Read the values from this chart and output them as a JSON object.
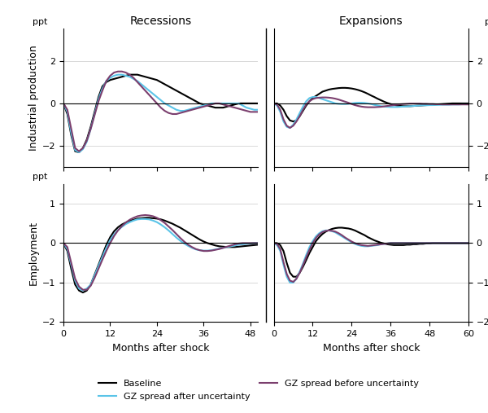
{
  "recession_months": [
    0,
    1,
    2,
    3,
    4,
    5,
    6,
    7,
    8,
    9,
    10,
    11,
    12,
    13,
    14,
    15,
    16,
    17,
    18,
    19,
    20,
    21,
    22,
    23,
    24,
    25,
    26,
    27,
    28,
    29,
    30,
    31,
    32,
    33,
    34,
    35,
    36,
    37,
    38,
    39,
    40,
    41,
    42,
    43,
    44,
    45,
    46,
    47,
    48,
    49,
    50
  ],
  "expansion_months": [
    0,
    1,
    2,
    3,
    4,
    5,
    6,
    7,
    8,
    9,
    10,
    11,
    12,
    13,
    14,
    15,
    16,
    17,
    18,
    19,
    20,
    21,
    22,
    23,
    24,
    25,
    26,
    27,
    28,
    29,
    30,
    31,
    32,
    33,
    34,
    35,
    36,
    37,
    38,
    39,
    40,
    41,
    42,
    43,
    44,
    45,
    46,
    47,
    48,
    49,
    50,
    51,
    52,
    53,
    54,
    55,
    56,
    57,
    58,
    59,
    60
  ],
  "rec_ip_baseline": [
    0,
    -0.5,
    -1.5,
    -2.25,
    -2.3,
    -2.1,
    -1.7,
    -1.1,
    -0.4,
    0.3,
    0.8,
    1.0,
    1.1,
    1.15,
    1.2,
    1.25,
    1.3,
    1.35,
    1.35,
    1.35,
    1.3,
    1.25,
    1.2,
    1.15,
    1.1,
    1.0,
    0.9,
    0.8,
    0.7,
    0.6,
    0.5,
    0.4,
    0.3,
    0.2,
    0.1,
    0.0,
    -0.05,
    -0.1,
    -0.15,
    -0.2,
    -0.2,
    -0.2,
    -0.15,
    -0.1,
    -0.05,
    0.0,
    0.0,
    0.0,
    0.0,
    0.0,
    0.0
  ],
  "rec_ip_gz_after": [
    0,
    -0.4,
    -1.4,
    -2.2,
    -2.3,
    -2.15,
    -1.8,
    -1.2,
    -0.5,
    0.2,
    0.7,
    1.05,
    1.2,
    1.3,
    1.35,
    1.35,
    1.3,
    1.25,
    1.15,
    1.05,
    0.9,
    0.75,
    0.6,
    0.45,
    0.3,
    0.15,
    0.0,
    -0.1,
    -0.2,
    -0.3,
    -0.35,
    -0.35,
    -0.3,
    -0.25,
    -0.2,
    -0.15,
    -0.1,
    -0.05,
    0.0,
    0.0,
    0.0,
    0.0,
    0.0,
    0.0,
    0.0,
    0.0,
    -0.1,
    -0.2,
    -0.25,
    -0.3,
    -0.3
  ],
  "rec_ip_gz_before": [
    0,
    -0.3,
    -1.2,
    -2.1,
    -2.25,
    -2.1,
    -1.75,
    -1.2,
    -0.55,
    0.1,
    0.6,
    1.05,
    1.3,
    1.45,
    1.5,
    1.5,
    1.45,
    1.35,
    1.2,
    1.0,
    0.8,
    0.6,
    0.4,
    0.2,
    0.0,
    -0.2,
    -0.35,
    -0.45,
    -0.5,
    -0.5,
    -0.45,
    -0.4,
    -0.35,
    -0.3,
    -0.25,
    -0.2,
    -0.15,
    -0.1,
    -0.05,
    0.0,
    0.0,
    -0.05,
    -0.1,
    -0.15,
    -0.2,
    -0.25,
    -0.3,
    -0.35,
    -0.4,
    -0.4,
    -0.4
  ],
  "exp_ip_baseline": [
    0,
    0.0,
    -0.1,
    -0.3,
    -0.6,
    -0.8,
    -0.85,
    -0.8,
    -0.6,
    -0.35,
    -0.1,
    0.1,
    0.25,
    0.35,
    0.45,
    0.55,
    0.6,
    0.65,
    0.68,
    0.7,
    0.72,
    0.73,
    0.73,
    0.72,
    0.7,
    0.67,
    0.63,
    0.58,
    0.52,
    0.45,
    0.37,
    0.3,
    0.22,
    0.15,
    0.08,
    0.02,
    -0.03,
    -0.07,
    -0.1,
    -0.12,
    -0.13,
    -0.13,
    -0.13,
    -0.12,
    -0.11,
    -0.1,
    -0.09,
    -0.08,
    -0.07,
    -0.06,
    -0.05,
    -0.04,
    -0.03,
    -0.02,
    -0.01,
    0.0,
    0.0,
    0.0,
    0.0,
    0.0,
    0.0
  ],
  "exp_ip_gz_after": [
    0,
    -0.1,
    -0.4,
    -0.85,
    -1.1,
    -1.15,
    -1.0,
    -0.75,
    -0.45,
    -0.15,
    0.1,
    0.25,
    0.3,
    0.3,
    0.25,
    0.2,
    0.15,
    0.1,
    0.05,
    0.0,
    -0.02,
    -0.03,
    -0.03,
    -0.02,
    0.0,
    0.02,
    0.03,
    0.03,
    0.02,
    0.0,
    -0.03,
    -0.07,
    -0.1,
    -0.13,
    -0.15,
    -0.16,
    -0.17,
    -0.17,
    -0.17,
    -0.16,
    -0.15,
    -0.14,
    -0.13,
    -0.12,
    -0.11,
    -0.1,
    -0.09,
    -0.09,
    -0.08,
    -0.08,
    -0.07,
    -0.07,
    -0.06,
    -0.06,
    -0.06,
    -0.05,
    -0.05,
    -0.05,
    -0.04,
    -0.04,
    -0.04
  ],
  "exp_ip_gz_before": [
    0,
    -0.05,
    -0.3,
    -0.75,
    -1.05,
    -1.15,
    -1.05,
    -0.85,
    -0.6,
    -0.3,
    -0.05,
    0.1,
    0.2,
    0.25,
    0.27,
    0.28,
    0.28,
    0.27,
    0.25,
    0.22,
    0.18,
    0.13,
    0.08,
    0.03,
    -0.03,
    -0.08,
    -0.12,
    -0.15,
    -0.17,
    -0.18,
    -0.18,
    -0.18,
    -0.17,
    -0.16,
    -0.14,
    -0.12,
    -0.1,
    -0.08,
    -0.06,
    -0.04,
    -0.03,
    -0.02,
    -0.01,
    -0.01,
    -0.01,
    -0.01,
    -0.02,
    -0.02,
    -0.03,
    -0.03,
    -0.04,
    -0.04,
    -0.05,
    -0.05,
    -0.05,
    -0.05,
    -0.05,
    -0.05,
    -0.05,
    -0.05,
    -0.05
  ],
  "rec_emp_baseline": [
    0,
    -0.2,
    -0.65,
    -1.05,
    -1.2,
    -1.25,
    -1.2,
    -1.05,
    -0.8,
    -0.55,
    -0.3,
    -0.05,
    0.15,
    0.3,
    0.4,
    0.47,
    0.52,
    0.56,
    0.59,
    0.62,
    0.63,
    0.64,
    0.64,
    0.63,
    0.62,
    0.6,
    0.57,
    0.53,
    0.49,
    0.44,
    0.39,
    0.33,
    0.27,
    0.21,
    0.15,
    0.09,
    0.04,
    0.0,
    -0.03,
    -0.06,
    -0.08,
    -0.09,
    -0.1,
    -0.1,
    -0.1,
    -0.09,
    -0.08,
    -0.07,
    -0.06,
    -0.05,
    -0.04
  ],
  "rec_emp_gz_after": [
    0,
    -0.15,
    -0.55,
    -0.95,
    -1.15,
    -1.2,
    -1.15,
    -1.05,
    -0.82,
    -0.58,
    -0.35,
    -0.12,
    0.08,
    0.22,
    0.33,
    0.41,
    0.48,
    0.53,
    0.57,
    0.6,
    0.61,
    0.61,
    0.6,
    0.57,
    0.53,
    0.47,
    0.4,
    0.32,
    0.23,
    0.14,
    0.06,
    -0.01,
    -0.07,
    -0.12,
    -0.16,
    -0.18,
    -0.19,
    -0.19,
    -0.18,
    -0.16,
    -0.14,
    -0.12,
    -0.1,
    -0.08,
    -0.06,
    -0.04,
    -0.03,
    -0.02,
    -0.01,
    0.0,
    0.0
  ],
  "rec_emp_gz_before": [
    0,
    -0.1,
    -0.5,
    -0.9,
    -1.1,
    -1.18,
    -1.18,
    -1.08,
    -0.88,
    -0.65,
    -0.42,
    -0.2,
    0.0,
    0.18,
    0.32,
    0.43,
    0.52,
    0.59,
    0.64,
    0.68,
    0.7,
    0.71,
    0.7,
    0.68,
    0.64,
    0.58,
    0.51,
    0.42,
    0.33,
    0.23,
    0.13,
    0.04,
    -0.04,
    -0.1,
    -0.15,
    -0.18,
    -0.2,
    -0.2,
    -0.19,
    -0.17,
    -0.15,
    -0.12,
    -0.09,
    -0.06,
    -0.03,
    -0.01,
    0.0,
    0.0,
    0.0,
    0.0,
    0.0
  ],
  "exp_emp_baseline": [
    0,
    0.0,
    -0.05,
    -0.2,
    -0.5,
    -0.75,
    -0.85,
    -0.85,
    -0.75,
    -0.6,
    -0.43,
    -0.25,
    -0.1,
    0.05,
    0.15,
    0.23,
    0.29,
    0.33,
    0.36,
    0.38,
    0.39,
    0.39,
    0.38,
    0.37,
    0.35,
    0.32,
    0.28,
    0.24,
    0.2,
    0.15,
    0.11,
    0.07,
    0.04,
    0.01,
    -0.01,
    -0.03,
    -0.04,
    -0.05,
    -0.05,
    -0.05,
    -0.05,
    -0.04,
    -0.04,
    -0.03,
    -0.03,
    -0.02,
    -0.02,
    -0.01,
    -0.01,
    0.0,
    0.0,
    0.0,
    0.0,
    0.0,
    0.0,
    0.0,
    0.0,
    0.0,
    0.0,
    0.0,
    0.0
  ],
  "exp_emp_gz_after": [
    0,
    -0.05,
    -0.2,
    -0.55,
    -0.85,
    -1.0,
    -1.0,
    -0.9,
    -0.72,
    -0.52,
    -0.3,
    -0.1,
    0.05,
    0.17,
    0.25,
    0.3,
    0.32,
    0.32,
    0.3,
    0.27,
    0.22,
    0.17,
    0.12,
    0.07,
    0.02,
    -0.02,
    -0.05,
    -0.07,
    -0.08,
    -0.08,
    -0.07,
    -0.06,
    -0.05,
    -0.03,
    -0.02,
    -0.01,
    0.0,
    0.0,
    0.0,
    0.0,
    0.0,
    0.0,
    0.0,
    0.0,
    0.0,
    0.0,
    0.0,
    0.0,
    0.0,
    0.0,
    0.0,
    0.0,
    0.0,
    0.0,
    0.0,
    0.0,
    0.0,
    0.0,
    0.0,
    0.0,
    0.0
  ],
  "exp_emp_gz_before": [
    0,
    -0.02,
    -0.15,
    -0.48,
    -0.78,
    -0.95,
    -0.98,
    -0.9,
    -0.75,
    -0.56,
    -0.36,
    -0.17,
    0.0,
    0.13,
    0.22,
    0.28,
    0.31,
    0.32,
    0.31,
    0.29,
    0.25,
    0.2,
    0.14,
    0.09,
    0.04,
    0.0,
    -0.03,
    -0.05,
    -0.06,
    -0.07,
    -0.06,
    -0.05,
    -0.04,
    -0.03,
    -0.02,
    -0.01,
    0.0,
    0.0,
    0.0,
    0.0,
    0.0,
    0.0,
    0.0,
    0.0,
    0.0,
    0.0,
    0.0,
    0.0,
    0.0,
    0.0,
    0.0,
    0.0,
    0.0,
    0.0,
    0.0,
    0.0,
    0.0,
    0.0,
    0.0,
    0.0,
    0.0
  ],
  "color_baseline": "#000000",
  "color_gz_after": "#5bc4e8",
  "color_gz_before": "#7b3f6e",
  "rec_xlim": [
    0,
    50
  ],
  "exp_xlim": [
    0,
    60
  ],
  "ip_ylim": [
    -3,
    3.5
  ],
  "emp_ylim": [
    -2,
    1.5
  ],
  "ip_yticks": [
    -2,
    0,
    2
  ],
  "emp_yticks": [
    -2,
    -1,
    0,
    1
  ],
  "rec_xticks": [
    0,
    12,
    24,
    36,
    48
  ],
  "exp_xticks": [
    0,
    12,
    24,
    36,
    48,
    60
  ],
  "title_recessions": "Recessions",
  "title_expansions": "Expansions",
  "ylabel_ip": "Industrial production",
  "ylabel_emp": "Employment",
  "xlabel": "Months after shock",
  "yunit": "ppt",
  "legend_baseline": "Baseline",
  "legend_gz_after": "GZ spread after uncertainty",
  "legend_gz_before": "GZ spread before uncertainty",
  "lw": 1.5
}
